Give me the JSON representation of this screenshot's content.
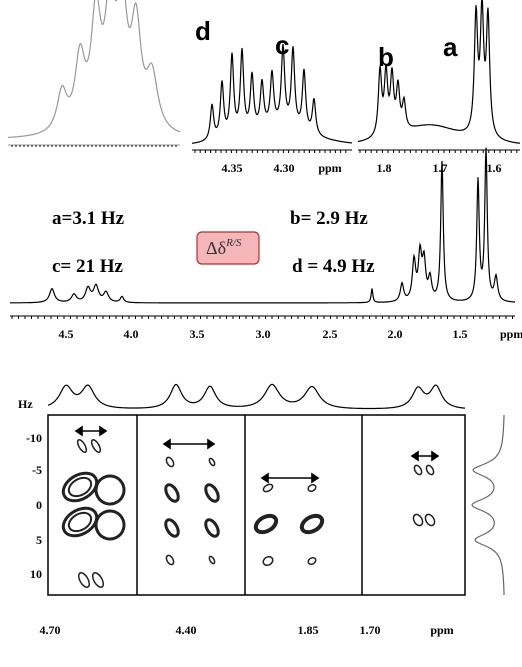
{
  "top_panels": {
    "d_label": "d",
    "c_label": "c",
    "b_label": "b",
    "a_label": "a",
    "c_axis": {
      "ticks": [
        "4.35",
        "4.30"
      ],
      "unit": "ppm"
    },
    "ba_axis": {
      "ticks": [
        "1.8",
        "1.7",
        "1.6"
      ]
    }
  },
  "middle_panel": {
    "couplings": [
      "a=3.1 Hz",
      "b= 2.9 Hz",
      "c= 21 Hz",
      "d = 4.9 Hz"
    ],
    "delta_label": {
      "symbol": "Δδ",
      "superscript": "R/S"
    },
    "axis": {
      "ticks": [
        "4.5",
        "4.0",
        "3.5",
        "3.0",
        "2.5",
        "2.0",
        "1.5"
      ],
      "unit": "ppm"
    }
  },
  "bottom_panel": {
    "y_unit": "Hz",
    "yticks": [
      "-10",
      "-5",
      "0",
      "5",
      "10"
    ],
    "xticks": [
      "4.70",
      "4.40",
      "1.85",
      "1.70"
    ],
    "x_unit": "ppm"
  }
}
